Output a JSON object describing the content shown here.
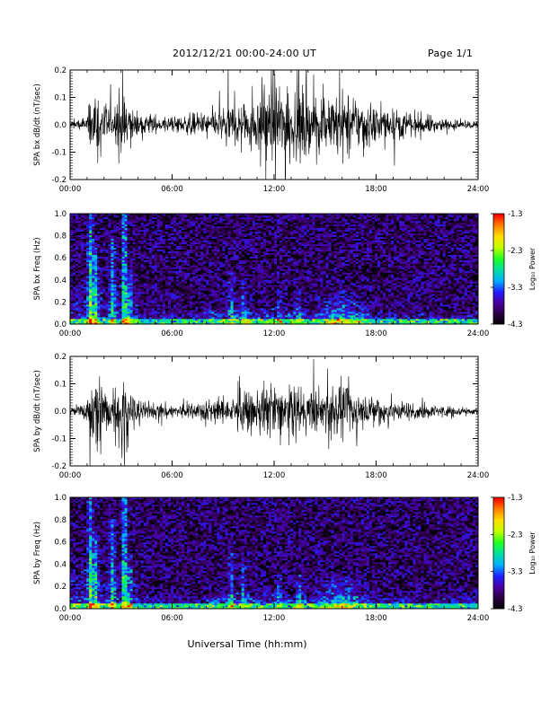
{
  "header": {
    "date_range": "2012/12/21   00:00-24:00 UT",
    "page": "Page 1/1"
  },
  "xlabel": "Universal Time (hh:mm)",
  "chart_data": [
    {
      "type": "line",
      "ylabel": "SPA bx dB/dt (nT/sec)",
      "xlim": [
        0,
        24
      ],
      "ylim": [
        -0.2,
        0.2
      ],
      "x_tick_labels": [
        "00:00",
        "06:00",
        "12:00",
        "18:00",
        "24:00"
      ],
      "y_tick_labels": [
        "-0.2",
        "-0.1",
        "0.0",
        "0.1",
        "0.2"
      ],
      "x_unit": "hours UT",
      "envelope_hours": [
        0,
        1,
        1.5,
        2,
        2.5,
        3,
        3.5,
        4,
        5,
        6,
        7,
        8,
        9,
        10,
        11,
        11.5,
        12,
        12.5,
        13,
        14,
        15,
        16,
        17,
        18,
        19,
        20,
        21,
        22,
        23,
        24
      ],
      "envelope_amplitude": [
        0.02,
        0.05,
        0.22,
        0.12,
        0.08,
        0.25,
        0.1,
        0.06,
        0.05,
        0.04,
        0.05,
        0.07,
        0.09,
        0.12,
        0.16,
        0.25,
        0.25,
        0.22,
        0.2,
        0.17,
        0.15,
        0.16,
        0.14,
        0.1,
        0.08,
        0.06,
        0.05,
        0.03,
        0.02,
        0.02
      ]
    },
    {
      "type": "heatmap",
      "ylabel": "SPA bx Freq (Hz)",
      "xlim": [
        0,
        24
      ],
      "ylim": [
        0,
        1.0
      ],
      "x_tick_labels": [
        "00:00",
        "06:00",
        "12:00",
        "18:00",
        "24:00"
      ],
      "y_tick_labels": [
        "0.0",
        "0.2",
        "0.4",
        "0.6",
        "0.8",
        "1.0"
      ],
      "colorbar": {
        "label": "Log₁₀ Power",
        "range": [
          -4.3,
          -1.3
        ],
        "tick_labels": [
          "-1.3",
          "-2.3",
          "-3.3",
          "-4.3"
        ],
        "colormap": [
          "#000000",
          "#2a0040",
          "#4b00a0",
          "#2020ff",
          "#00b0ff",
          "#00e0a0",
          "#20ff20",
          "#c0ff00",
          "#ffe000",
          "#ff8000",
          "#ff0000"
        ]
      },
      "background_log_power": -3.9,
      "low_freq_band_hz": 0.05,
      "bursts": [
        {
          "hour": 1.2,
          "top_freq_hz": 1.0,
          "level": 0.55
        },
        {
          "hour": 1.5,
          "top_freq_hz": 0.7,
          "level": 0.5
        },
        {
          "hour": 2.5,
          "top_freq_hz": 0.8,
          "level": 0.4
        },
        {
          "hour": 3.2,
          "top_freq_hz": 1.0,
          "level": 0.6
        },
        {
          "hour": 3.5,
          "top_freq_hz": 0.5,
          "level": 0.4
        },
        {
          "hour": 9.5,
          "top_freq_hz": 0.5,
          "level": 0.3
        },
        {
          "hour": 10.2,
          "top_freq_hz": 0.4,
          "level": 0.3
        },
        {
          "hour": 12.3,
          "top_freq_hz": 0.3,
          "level": 0.25
        },
        {
          "hour": 13.5,
          "top_freq_hz": 0.3,
          "level": 0.25
        }
      ],
      "enhancement": {
        "hour_start": 14,
        "hour_end": 18,
        "top_freq_hz": 0.35,
        "level": 0.35
      }
    },
    {
      "type": "line",
      "ylabel": "SPA by dB/dt (nT/sec)",
      "xlim": [
        0,
        24
      ],
      "ylim": [
        -0.2,
        0.2
      ],
      "x_tick_labels": [
        "00:00",
        "06:00",
        "12:00",
        "18:00",
        "24:00"
      ],
      "y_tick_labels": [
        "-0.2",
        "-0.1",
        "0.0",
        "0.1",
        "0.2"
      ],
      "x_unit": "hours UT",
      "envelope_hours": [
        0,
        1,
        1.5,
        2,
        2.5,
        3,
        3.5,
        4,
        5,
        6,
        7,
        8,
        9,
        10,
        11,
        11.5,
        12,
        12.5,
        13,
        14,
        15,
        16,
        17,
        18,
        19,
        20,
        21,
        22,
        23,
        24
      ],
      "envelope_amplitude": [
        0.02,
        0.05,
        0.25,
        0.14,
        0.1,
        0.25,
        0.12,
        0.06,
        0.04,
        0.04,
        0.04,
        0.06,
        0.07,
        0.08,
        0.1,
        0.14,
        0.16,
        0.12,
        0.12,
        0.11,
        0.12,
        0.14,
        0.1,
        0.09,
        0.06,
        0.05,
        0.04,
        0.03,
        0.02,
        0.02
      ]
    },
    {
      "type": "heatmap",
      "ylabel": "SPA by Freq (Hz)",
      "xlim": [
        0,
        24
      ],
      "ylim": [
        0,
        1.0
      ],
      "x_tick_labels": [
        "00:00",
        "06:00",
        "12:00",
        "18:00",
        "24:00"
      ],
      "y_tick_labels": [
        "0.0",
        "0.2",
        "0.4",
        "0.6",
        "0.8",
        "1.0"
      ],
      "colorbar": {
        "label": "Log₁₀ Power",
        "range": [
          -4.3,
          -1.3
        ],
        "tick_labels": [
          "-1.3",
          "-2.3",
          "-3.3",
          "-4.3"
        ],
        "colormap": [
          "#000000",
          "#2a0040",
          "#4b00a0",
          "#2020ff",
          "#00b0ff",
          "#00e0a0",
          "#20ff20",
          "#c0ff00",
          "#ffe000",
          "#ff8000",
          "#ff0000"
        ]
      },
      "background_log_power": -3.9,
      "low_freq_band_hz": 0.05,
      "bursts": [
        {
          "hour": 1.2,
          "top_freq_hz": 1.0,
          "level": 0.55
        },
        {
          "hour": 1.5,
          "top_freq_hz": 0.7,
          "level": 0.5
        },
        {
          "hour": 2.5,
          "top_freq_hz": 0.8,
          "level": 0.4
        },
        {
          "hour": 3.2,
          "top_freq_hz": 1.0,
          "level": 0.6
        },
        {
          "hour": 3.5,
          "top_freq_hz": 0.5,
          "level": 0.4
        },
        {
          "hour": 9.5,
          "top_freq_hz": 0.5,
          "level": 0.35
        },
        {
          "hour": 10.2,
          "top_freq_hz": 0.4,
          "level": 0.3
        },
        {
          "hour": 12.3,
          "top_freq_hz": 0.3,
          "level": 0.25
        },
        {
          "hour": 13.5,
          "top_freq_hz": 0.3,
          "level": 0.25
        }
      ],
      "enhancement": {
        "hour_start": 14,
        "hour_end": 18,
        "top_freq_hz": 0.35,
        "level": 0.35
      }
    }
  ]
}
